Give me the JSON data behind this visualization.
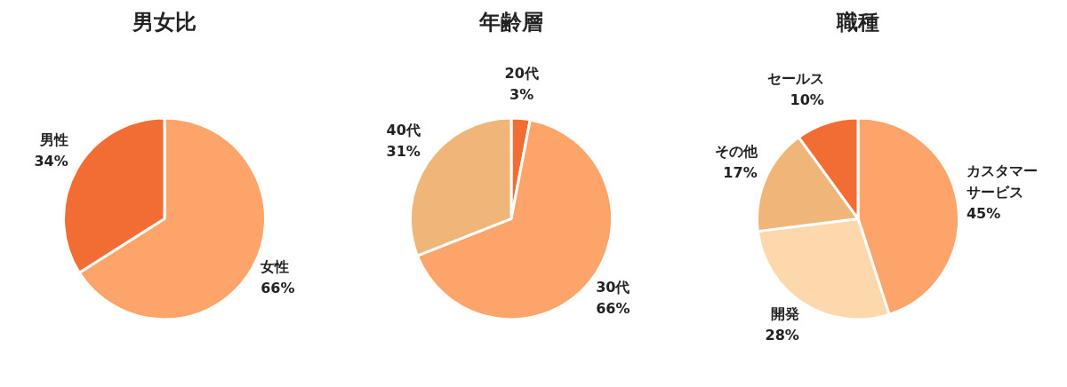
{
  "chart_data": [
    {
      "type": "pie",
      "title": "男女比",
      "categories": [
        "女性",
        "男性"
      ],
      "values": [
        66,
        34
      ],
      "value_labels": [
        "66%",
        "34%"
      ],
      "colors": [
        "#fca469",
        "#f26d33"
      ]
    },
    {
      "type": "pie",
      "title": "年齢層",
      "categories": [
        "20代",
        "30代",
        "40代"
      ],
      "values": [
        3,
        66,
        31
      ],
      "value_labels": [
        "3%",
        "66%",
        "31%"
      ],
      "colors": [
        "#f26d33",
        "#fca469",
        "#f0b579"
      ]
    },
    {
      "type": "pie",
      "title": "職種",
      "categories": [
        "カスタマーサービス",
        "開発",
        "その他",
        "セールス"
      ],
      "values": [
        45,
        28,
        17,
        10
      ],
      "value_labels": [
        "45%",
        "28%",
        "17%",
        "10%"
      ],
      "colors": [
        "#fca469",
        "#fdd8ad",
        "#f0b579",
        "#f26d33"
      ]
    }
  ]
}
